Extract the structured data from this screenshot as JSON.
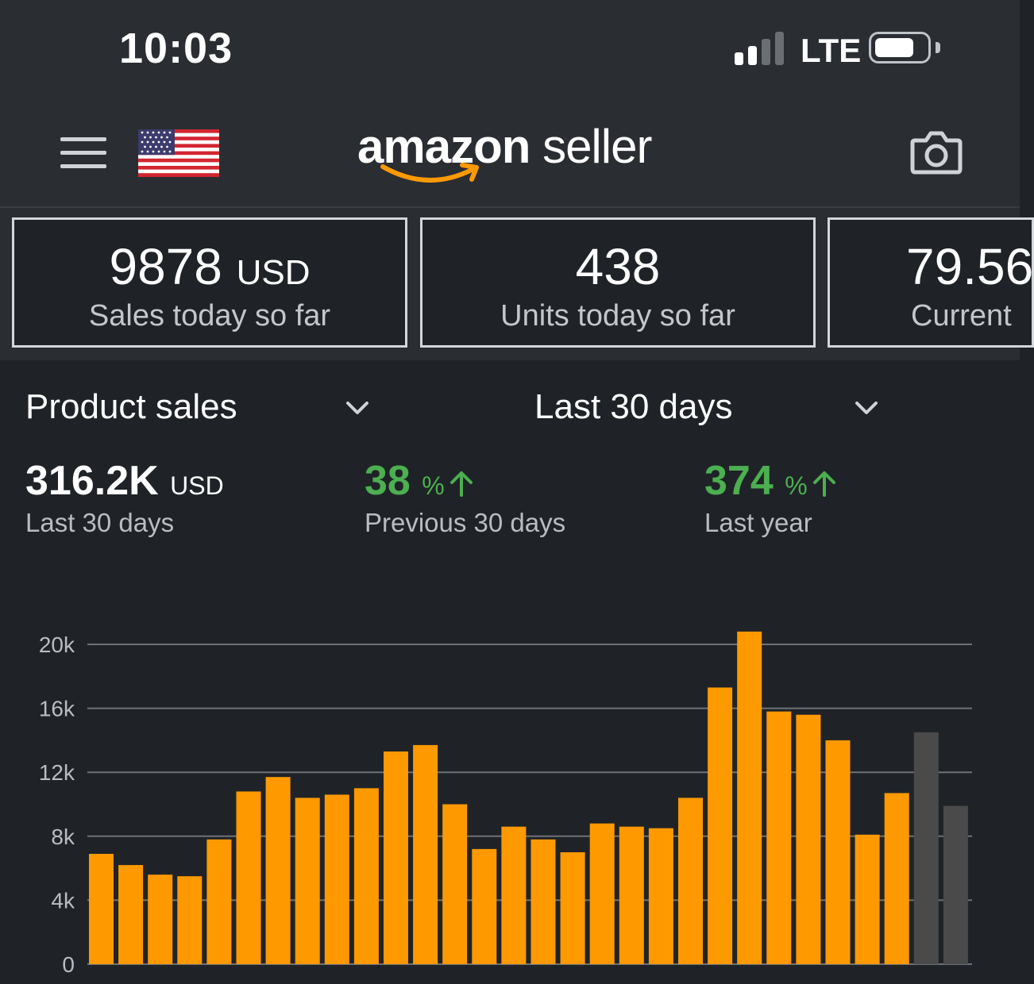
{
  "status_bar": {
    "time": "10:03",
    "carrier": "LTE",
    "icons": [
      "signal-icon",
      "battery-icon"
    ]
  },
  "header": {
    "logo_brand": "amazon",
    "logo_suffix": "seller",
    "icons": [
      "hamburger-menu-icon",
      "us-flag-icon",
      "camera-icon"
    ],
    "accent_color": "#ff9900"
  },
  "kpis": [
    {
      "value": "9878",
      "unit": "USD",
      "label": "Sales today so far"
    },
    {
      "value": "438",
      "unit": "",
      "label": "Units today so far"
    },
    {
      "value": "79.56",
      "unit": "",
      "label": "Current"
    }
  ],
  "selectors": {
    "metric": "Product sales",
    "range": "Last 30 days"
  },
  "metrics": {
    "total": {
      "value": "316.2K",
      "unit": "USD",
      "label": "Last 30 days"
    },
    "vs_previous": {
      "value": "38",
      "unit": "%",
      "label": "Previous 30 days",
      "color": "#4caf50"
    },
    "vs_last_year": {
      "value": "374",
      "unit": "%",
      "label": "Last year",
      "color": "#4caf50"
    }
  },
  "chart_data": {
    "type": "bar",
    "yticks": [
      "0",
      "4k",
      "8k",
      "12k",
      "16k",
      "20k"
    ],
    "ylim": [
      0,
      20000
    ],
    "values": [
      6900,
      6200,
      5600,
      5500,
      7800,
      10800,
      11700,
      10400,
      10600,
      11000,
      13300,
      13700,
      10000,
      7200,
      8600,
      7800,
      7000,
      8800,
      8600,
      8500,
      10400,
      17300,
      20800,
      15800,
      15600,
      14000,
      8100,
      10700,
      14500,
      9900
    ],
    "highlight_color": "#ff9900",
    "muted_color": "#4a4a4a",
    "muted_from_index": 28
  }
}
